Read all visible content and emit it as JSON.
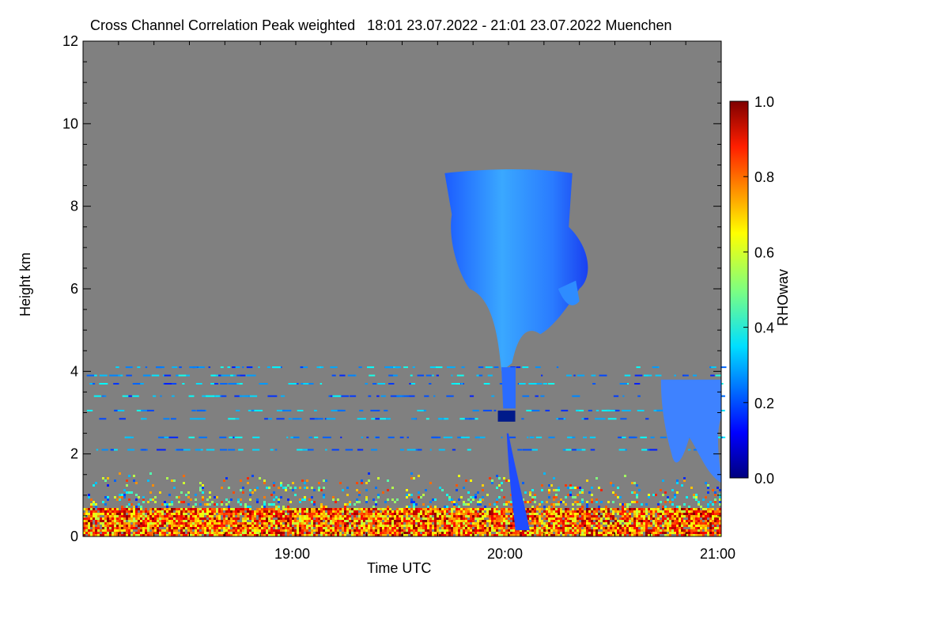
{
  "chart_data": {
    "type": "heatmap",
    "title": "Cross Channel Correlation Peak weighted   18:01 23.07.2022 - 21:01 23.07.2022 Muenchen",
    "xlabel": "Time UTC",
    "ylabel": "Height km",
    "xlim": [
      "18:01",
      "21:01"
    ],
    "ylim": [
      0,
      12
    ],
    "x_ticks": [
      "19:00",
      "20:00",
      "21:00"
    ],
    "y_ticks": [
      "0",
      "2",
      "4",
      "6",
      "8",
      "10",
      "12"
    ],
    "colorbar": {
      "label": "RHOwav",
      "range": [
        0.0,
        1.0
      ],
      "ticks": [
        "0.0",
        "0.2",
        "0.4",
        "0.6",
        "0.8",
        "1.0"
      ],
      "colormap": "jet"
    },
    "background_color": "#808080",
    "features": [
      {
        "desc": "cirrus plume",
        "time_range": [
          "19:43",
          "20:24"
        ],
        "height_km": [
          4.0,
          9.0
        ],
        "rho": 0.3
      },
      {
        "desc": "fall streak",
        "time_range": [
          "20:01",
          "20:07"
        ],
        "height_km": [
          0.1,
          2.5
        ],
        "rho": 0.2
      },
      {
        "desc": "mid cloud",
        "time_range": [
          "20:44",
          "21:01"
        ],
        "height_km": [
          1.2,
          3.8
        ],
        "rho": 0.25
      },
      {
        "desc": "boundary layer",
        "time_range": [
          "18:01",
          "21:01"
        ],
        "height_km": [
          0.0,
          1.6
        ],
        "rho": 0.75
      }
    ]
  }
}
